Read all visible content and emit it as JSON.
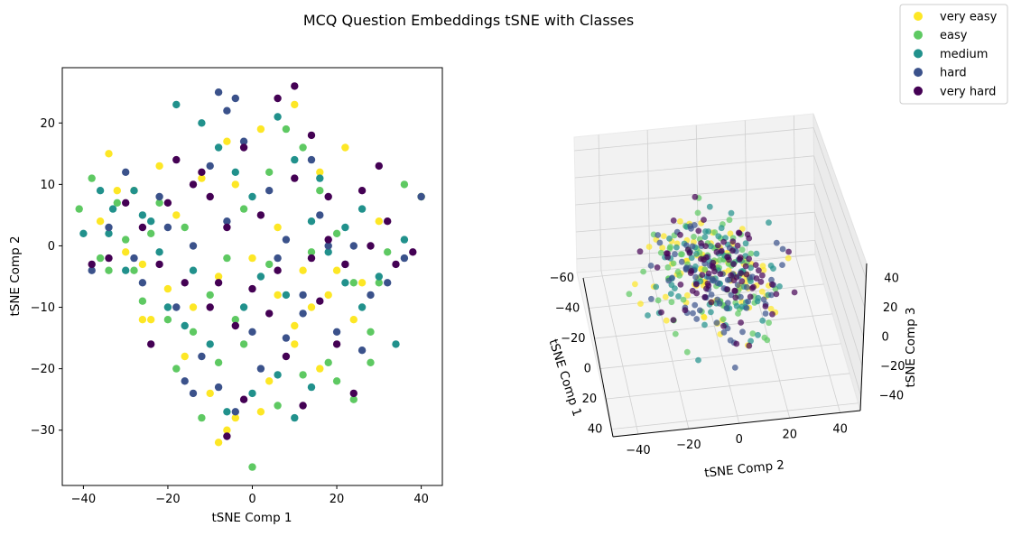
{
  "figure": {
    "suptitle": "MCQ Question Embeddings tSNE with Classes"
  },
  "legend": {
    "placement": "top-right",
    "entries": [
      {
        "label": "very easy",
        "color": "#fde725"
      },
      {
        "label": "easy",
        "color": "#5ec962"
      },
      {
        "label": "medium",
        "color": "#21918c"
      },
      {
        "label": "hard",
        "color": "#3b528b"
      },
      {
        "label": "very hard",
        "color": "#440154"
      }
    ]
  },
  "chart_data": [
    {
      "type": "scatter",
      "title": "",
      "xlabel": "tSNE Comp 1",
      "ylabel": "tSNE Comp 2",
      "xlim": [
        -45,
        45
      ],
      "ylim": [
        -39,
        29
      ],
      "xticks": [
        -40,
        -20,
        0,
        20,
        40
      ],
      "yticks": [
        -30,
        -20,
        -10,
        0,
        10,
        20
      ],
      "grid": false,
      "series": [
        {
          "name": "very easy",
          "color": "#fde725",
          "points": [
            [
              -34,
              15
            ],
            [
              -28,
              9
            ],
            [
              -22,
              13
            ],
            [
              -18,
              5
            ],
            [
              -12,
              11
            ],
            [
              -6,
              17
            ],
            [
              2,
              19
            ],
            [
              10,
              23
            ],
            [
              16,
              12
            ],
            [
              22,
              16
            ],
            [
              -30,
              -1
            ],
            [
              -26,
              -3
            ],
            [
              -20,
              -7
            ],
            [
              -14,
              -10
            ],
            [
              -8,
              -5
            ],
            [
              0,
              -2
            ],
            [
              6,
              3
            ],
            [
              12,
              -4
            ],
            [
              18,
              -8
            ],
            [
              24,
              -12
            ],
            [
              -24,
              -12
            ],
            [
              -16,
              -18
            ],
            [
              -10,
              -24
            ],
            [
              -4,
              -28
            ],
            [
              4,
              -22
            ],
            [
              10,
              -16
            ],
            [
              16,
              -20
            ],
            [
              -6,
              -30
            ],
            [
              -8,
              -32
            ],
            [
              2,
              -27
            ],
            [
              10,
              -13
            ],
            [
              26,
              -6
            ],
            [
              30,
              4
            ],
            [
              40,
              8
            ],
            [
              -36,
              4
            ],
            [
              -32,
              9
            ],
            [
              -26,
              -12
            ],
            [
              -4,
              10
            ],
            [
              6,
              -8
            ],
            [
              14,
              -10
            ],
            [
              20,
              -4
            ]
          ]
        },
        {
          "name": "easy",
          "color": "#5ec962",
          "points": [
            [
              -41,
              6
            ],
            [
              -38,
              11
            ],
            [
              -36,
              -2
            ],
            [
              -32,
              7
            ],
            [
              -28,
              -4
            ],
            [
              -24,
              2
            ],
            [
              -20,
              -12
            ],
            [
              -18,
              -20
            ],
            [
              -14,
              -14
            ],
            [
              -10,
              -8
            ],
            [
              -6,
              -2
            ],
            [
              -2,
              6
            ],
            [
              4,
              12
            ],
            [
              8,
              19
            ],
            [
              12,
              16
            ],
            [
              16,
              9
            ],
            [
              20,
              2
            ],
            [
              24,
              -6
            ],
            [
              28,
              -14
            ],
            [
              32,
              -1
            ],
            [
              36,
              10
            ],
            [
              40,
              8
            ],
            [
              -12,
              -28
            ],
            [
              -8,
              -19
            ],
            [
              -4,
              -12
            ],
            [
              0,
              -36
            ],
            [
              6,
              -26
            ],
            [
              12,
              -21
            ],
            [
              20,
              -22
            ],
            [
              24,
              -25
            ],
            [
              28,
              -19
            ],
            [
              -30,
              1
            ],
            [
              -26,
              -9
            ],
            [
              -22,
              7
            ],
            [
              14,
              -1
            ],
            [
              -16,
              3
            ],
            [
              -2,
              -16
            ],
            [
              4,
              -3
            ],
            [
              18,
              -19
            ],
            [
              30,
              -6
            ],
            [
              -34,
              -4
            ]
          ]
        },
        {
          "name": "medium",
          "color": "#21918c",
          "points": [
            [
              -40,
              2
            ],
            [
              -36,
              9
            ],
            [
              -33,
              6
            ],
            [
              -30,
              -4
            ],
            [
              -26,
              5
            ],
            [
              -22,
              -1
            ],
            [
              -18,
              23
            ],
            [
              -12,
              20
            ],
            [
              -8,
              16
            ],
            [
              -4,
              12
            ],
            [
              0,
              8
            ],
            [
              6,
              21
            ],
            [
              10,
              14
            ],
            [
              14,
              4
            ],
            [
              18,
              -1
            ],
            [
              22,
              -6
            ],
            [
              26,
              -10
            ],
            [
              30,
              -5
            ],
            [
              34,
              -16
            ],
            [
              36,
              1
            ],
            [
              -14,
              -4
            ],
            [
              -10,
              -16
            ],
            [
              -6,
              -27
            ],
            [
              0,
              -24
            ],
            [
              6,
              -21
            ],
            [
              10,
              -28
            ],
            [
              14,
              -23
            ],
            [
              -20,
              -10
            ],
            [
              2,
              -5
            ],
            [
              -28,
              9
            ],
            [
              -24,
              4
            ],
            [
              -16,
              -13
            ],
            [
              8,
              -8
            ],
            [
              16,
              11
            ],
            [
              22,
              3
            ],
            [
              -34,
              2
            ],
            [
              -2,
              -10
            ],
            [
              26,
              6
            ]
          ]
        },
        {
          "name": "hard",
          "color": "#3b528b",
          "points": [
            [
              -38,
              -4
            ],
            [
              -34,
              3
            ],
            [
              -30,
              12
            ],
            [
              -26,
              -6
            ],
            [
              -22,
              8
            ],
            [
              -18,
              -10
            ],
            [
              -14,
              0
            ],
            [
              -10,
              13
            ],
            [
              -6,
              22
            ],
            [
              -2,
              17
            ],
            [
              4,
              9
            ],
            [
              8,
              1
            ],
            [
              12,
              -8
            ],
            [
              16,
              5
            ],
            [
              20,
              -14
            ],
            [
              24,
              0
            ],
            [
              28,
              -8
            ],
            [
              32,
              -6
            ],
            [
              36,
              -2
            ],
            [
              40,
              8
            ],
            [
              -8,
              25
            ],
            [
              -4,
              24
            ],
            [
              -12,
              -18
            ],
            [
              -8,
              -23
            ],
            [
              -4,
              -27
            ],
            [
              2,
              -20
            ],
            [
              8,
              -15
            ],
            [
              12,
              -11
            ],
            [
              -20,
              3
            ],
            [
              -16,
              -22
            ],
            [
              -14,
              -24
            ],
            [
              -6,
              4
            ],
            [
              0,
              -14
            ],
            [
              6,
              -2
            ],
            [
              18,
              0
            ],
            [
              26,
              -17
            ],
            [
              -28,
              -2
            ],
            [
              14,
              14
            ],
            [
              22,
              -3
            ]
          ]
        },
        {
          "name": "very hard",
          "color": "#440154",
          "points": [
            [
              -38,
              -3
            ],
            [
              -34,
              -2
            ],
            [
              -30,
              7
            ],
            [
              -26,
              3
            ],
            [
              -22,
              -3
            ],
            [
              -18,
              14
            ],
            [
              -14,
              10
            ],
            [
              -10,
              8
            ],
            [
              -6,
              3
            ],
            [
              -2,
              16
            ],
            [
              2,
              5
            ],
            [
              6,
              24
            ],
            [
              10,
              26
            ],
            [
              14,
              18
            ],
            [
              18,
              8
            ],
            [
              22,
              -3
            ],
            [
              26,
              9
            ],
            [
              30,
              13
            ],
            [
              34,
              -3
            ],
            [
              38,
              -1
            ],
            [
              -12,
              12
            ],
            [
              -8,
              -6
            ],
            [
              -4,
              -13
            ],
            [
              0,
              -7
            ],
            [
              4,
              -11
            ],
            [
              8,
              -18
            ],
            [
              12,
              -26
            ],
            [
              16,
              -9
            ],
            [
              20,
              -16
            ],
            [
              24,
              -24
            ],
            [
              -10,
              -10
            ],
            [
              -6,
              -31
            ],
            [
              -2,
              -25
            ],
            [
              -16,
              -6
            ],
            [
              -20,
              7
            ],
            [
              -24,
              -16
            ],
            [
              6,
              -4
            ],
            [
              10,
              11
            ],
            [
              14,
              -2
            ],
            [
              18,
              1
            ],
            [
              28,
              0
            ],
            [
              32,
              4
            ]
          ]
        }
      ]
    },
    {
      "type": "scatter",
      "projection": "3d",
      "title": "",
      "xlabel": "tSNE Comp 1",
      "ylabel": "tSNE Comp 2",
      "zlabel": "tSNE Comp 3",
      "xlim": [
        -60,
        45
      ],
      "ylim": [
        -50,
        48
      ],
      "zlim": [
        -50,
        50
      ],
      "xticks": [
        -60,
        -40,
        -20,
        0,
        20,
        40
      ],
      "yticks": [
        -40,
        -20,
        0,
        20,
        40
      ],
      "zticks": [
        -40,
        -20,
        0,
        20,
        40
      ],
      "grid": true,
      "note": "same point cloud as the 2D panel rendered with a 3D perspective"
    }
  ]
}
